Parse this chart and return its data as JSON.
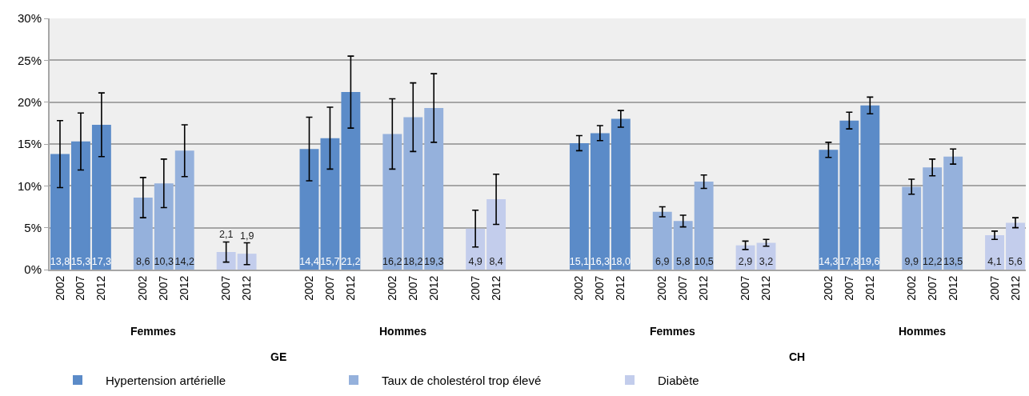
{
  "chart_data": {
    "type": "bar",
    "categories": [
      "2002",
      "2007",
      "2012",
      null,
      "2002",
      "2007",
      "2012",
      null,
      "2007",
      "2012",
      null,
      null,
      "2002",
      "2007",
      "2012",
      null,
      "2002",
      "2007",
      "2012",
      null,
      "2007",
      "2012",
      null,
      null,
      null,
      "2002",
      "2007",
      "2012",
      null,
      "2002",
      "2007",
      "2012",
      null,
      "2007",
      "2012",
      null,
      null,
      "2002",
      "2007",
      "2012",
      null,
      "2002",
      "2007",
      "2012",
      null,
      "2007",
      "2012"
    ],
    "series": [
      {
        "name": "Hypertension artérielle",
        "color": "#5b8bc8",
        "values": [
          13.8,
          15.3,
          17.3,
          null,
          null,
          null,
          null,
          null,
          null,
          null,
          null,
          null,
          14.4,
          15.7,
          21.2,
          null,
          null,
          null,
          null,
          null,
          null,
          null,
          null,
          null,
          null,
          15.1,
          16.3,
          18.0,
          null,
          null,
          null,
          null,
          null,
          null,
          null,
          null,
          null,
          14.3,
          17.8,
          19.6,
          null,
          null,
          null,
          null,
          null,
          null,
          null
        ],
        "errors": [
          4.0,
          3.4,
          3.8,
          null,
          null,
          null,
          null,
          null,
          null,
          null,
          null,
          null,
          3.8,
          3.7,
          4.3,
          null,
          null,
          null,
          null,
          null,
          null,
          null,
          null,
          null,
          null,
          0.9,
          0.9,
          1.0,
          null,
          null,
          null,
          null,
          null,
          null,
          null,
          null,
          null,
          0.9,
          1.0,
          1.0,
          null,
          null,
          null,
          null,
          null,
          null,
          null
        ],
        "value_labels": [
          "13,8",
          "15,3",
          "17,3",
          null,
          null,
          null,
          null,
          null,
          null,
          null,
          null,
          null,
          "14,4",
          "15,7",
          "21,2",
          null,
          null,
          null,
          null,
          null,
          null,
          null,
          null,
          null,
          null,
          "15,1",
          "16,3",
          "18,0",
          null,
          null,
          null,
          null,
          null,
          null,
          null,
          null,
          null,
          "14,3",
          "17,8",
          "19,6",
          null,
          null,
          null,
          null,
          null,
          null,
          null
        ]
      },
      {
        "name": "Taux de cholestérol trop élevé",
        "color": "#95b1dc",
        "values": [
          null,
          null,
          null,
          null,
          8.6,
          10.3,
          14.2,
          null,
          null,
          null,
          null,
          null,
          null,
          null,
          null,
          null,
          16.2,
          18.2,
          19.3,
          null,
          null,
          null,
          null,
          null,
          null,
          null,
          null,
          null,
          null,
          6.9,
          5.8,
          10.5,
          null,
          null,
          null,
          null,
          null,
          null,
          null,
          null,
          null,
          9.9,
          12.2,
          13.5,
          null,
          null,
          null
        ],
        "errors": [
          null,
          null,
          null,
          null,
          2.4,
          2.9,
          3.1,
          null,
          null,
          null,
          null,
          null,
          null,
          null,
          null,
          null,
          4.2,
          4.1,
          4.1,
          null,
          null,
          null,
          null,
          null,
          null,
          null,
          null,
          null,
          null,
          0.6,
          0.7,
          0.8,
          null,
          null,
          null,
          null,
          null,
          null,
          null,
          null,
          null,
          0.9,
          1.0,
          0.9,
          null,
          null,
          null
        ],
        "value_labels": [
          null,
          null,
          null,
          null,
          "8,6",
          "10,3",
          "14,2",
          null,
          null,
          null,
          null,
          null,
          null,
          null,
          null,
          null,
          "16,2",
          "18,2",
          "19,3",
          null,
          null,
          null,
          null,
          null,
          null,
          null,
          null,
          null,
          null,
          "6,9",
          "5,8",
          "10,5",
          null,
          null,
          null,
          null,
          null,
          null,
          null,
          null,
          null,
          "9,9",
          "12,2",
          "13,5",
          null,
          null,
          null
        ]
      },
      {
        "name": "Diabète",
        "color": "#c3cdec",
        "values": [
          null,
          null,
          null,
          null,
          null,
          null,
          null,
          null,
          2.1,
          1.9,
          null,
          null,
          null,
          null,
          null,
          null,
          null,
          null,
          null,
          null,
          4.9,
          8.4,
          null,
          null,
          null,
          null,
          null,
          null,
          null,
          null,
          null,
          null,
          null,
          2.9,
          3.2,
          null,
          null,
          null,
          null,
          null,
          null,
          null,
          null,
          null,
          null,
          4.1,
          5.6
        ],
        "errors": [
          null,
          null,
          null,
          null,
          null,
          null,
          null,
          null,
          1.2,
          1.3,
          null,
          null,
          null,
          null,
          null,
          null,
          null,
          null,
          null,
          null,
          2.2,
          3.0,
          null,
          null,
          null,
          null,
          null,
          null,
          null,
          null,
          null,
          null,
          null,
          0.5,
          0.4,
          null,
          null,
          null,
          null,
          null,
          null,
          null,
          null,
          null,
          null,
          0.5,
          0.6
        ],
        "value_labels": [
          null,
          null,
          null,
          null,
          null,
          null,
          null,
          null,
          "2,1",
          "1,9",
          null,
          null,
          null,
          null,
          null,
          null,
          null,
          null,
          null,
          null,
          "4,9",
          "8,4",
          null,
          null,
          null,
          null,
          null,
          null,
          null,
          null,
          null,
          null,
          null,
          "2,9",
          "3,2",
          null,
          null,
          null,
          null,
          null,
          null,
          null,
          null,
          null,
          null,
          "4,1",
          "5,6"
        ]
      }
    ],
    "ylim": [
      0,
      30
    ],
    "yticks": [
      {
        "value": 0,
        "label": "0%"
      },
      {
        "value": 5,
        "label": "5%"
      },
      {
        "value": 10,
        "label": "10%"
      },
      {
        "value": 15,
        "label": "15%"
      },
      {
        "value": 20,
        "label": "20%"
      },
      {
        "value": 25,
        "label": "25%"
      },
      {
        "value": 30,
        "label": "30%"
      }
    ],
    "grid": "y",
    "legend": "bottom",
    "annotations": [
      "Femmes",
      "Hommes",
      "Femmes",
      "Hommes",
      "GE",
      "CH"
    ]
  }
}
